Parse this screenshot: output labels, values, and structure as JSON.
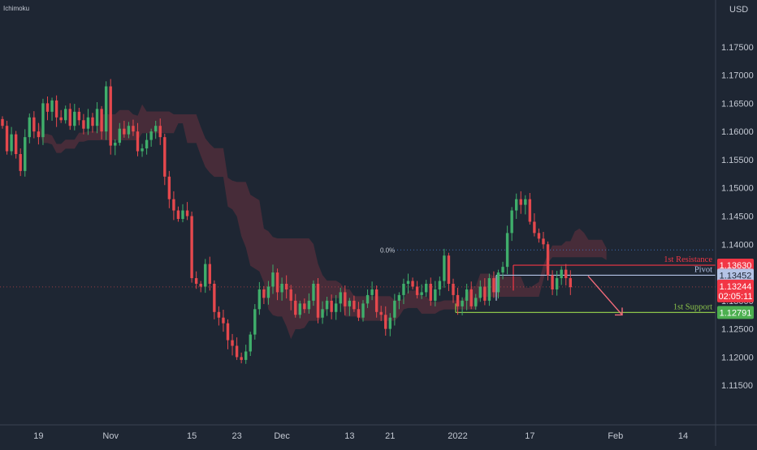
{
  "chart_data": {
    "type": "candlestick",
    "indicator_label": "Ichimoku",
    "currency": "USD",
    "ylim": [
      1.11,
      1.179
    ],
    "y_ticks": [
      "1.17500",
      "1.17000",
      "1.16500",
      "1.16000",
      "1.15500",
      "1.15000",
      "1.14500",
      "1.14000",
      "1.13500",
      "1.13000",
      "1.12500",
      "1.12000",
      "1.11500"
    ],
    "x_ticks": [
      {
        "label": "19",
        "bar": 8
      },
      {
        "label": "Nov",
        "bar": 24
      },
      {
        "label": "15",
        "bar": 42
      },
      {
        "label": "23",
        "bar": 52
      },
      {
        "label": "Dec",
        "bar": 62
      },
      {
        "label": "13",
        "bar": 77
      },
      {
        "label": "21",
        "bar": 86
      },
      {
        "label": "2022",
        "bar": 101
      },
      {
        "label": "17",
        "bar": 117
      },
      {
        "label": "Feb",
        "bar": 136
      },
      {
        "label": "14",
        "bar": 151
      }
    ],
    "series": [
      {
        "name": "Price",
        "values": [
          1.161,
          1.1565,
          1.1595,
          1.156,
          1.153,
          1.159,
          1.1625,
          1.16,
          1.159,
          1.165,
          1.1635,
          1.1655,
          1.1625,
          1.162,
          1.164,
          1.161,
          1.1635,
          1.162,
          1.1605,
          1.1625,
          1.161,
          1.164,
          1.16,
          1.168,
          1.1575,
          1.158,
          1.1605,
          1.1595,
          1.161,
          1.16,
          1.1565,
          1.157,
          1.1585,
          1.16,
          1.161,
          1.159,
          1.152,
          1.148,
          1.146,
          1.1445,
          1.146,
          1.145,
          1.134,
          1.133,
          1.1325,
          1.1365,
          1.133,
          1.128,
          1.127,
          1.126,
          1.123,
          1.122,
          1.12,
          1.1195,
          1.121,
          1.124,
          1.1285,
          1.132,
          1.1305,
          1.1325,
          1.135,
          1.1315,
          1.133,
          1.132,
          1.13,
          1.1275,
          1.1295,
          1.1285,
          1.13,
          1.133,
          1.127,
          1.1285,
          1.13,
          1.128,
          1.1295,
          1.1315,
          1.129,
          1.13,
          1.1285,
          1.127,
          1.1295,
          1.131,
          1.132,
          1.128,
          1.1275,
          1.125,
          1.127,
          1.13,
          1.131,
          1.133,
          1.1335,
          1.1325,
          1.131,
          1.1315,
          1.133,
          1.13,
          1.132,
          1.1335,
          1.138,
          1.133,
          1.131,
          1.129,
          1.13,
          1.132,
          1.129,
          1.1305,
          1.1325,
          1.13,
          1.134,
          1.1315,
          1.135,
          1.136,
          1.142,
          1.146,
          1.148,
          1.147,
          1.148,
          1.144,
          1.142,
          1.141,
          1.14,
          1.1345,
          1.132,
          1.134,
          1.1355,
          1.134,
          1.1324
        ]
      },
      {
        "name": "1st Resistance",
        "values": [
          1.1363
        ]
      },
      {
        "name": "Pivot",
        "values": [
          1.1345
        ]
      },
      {
        "name": "1st Support",
        "values": [
          1.1279
        ]
      }
    ],
    "levels": [
      {
        "label": "1st Resistance",
        "price_tag": "1.13630",
        "value": 1.1363,
        "color": "#f23645"
      },
      {
        "label": "Pivot",
        "price_tag": "1.13452",
        "value": 1.13452,
        "color": "#b5c4e6"
      },
      {
        "label": "1st Support",
        "price_tag": "1.12791",
        "value": 1.12791,
        "color": "#8bc34a"
      }
    ],
    "current_price": {
      "value": "1.13244",
      "countdown": "02:05:11",
      "numeric": 1.13244,
      "color": "#f23645"
    },
    "fib_label": "0.0%",
    "colors": {
      "background": "#1e2633",
      "up": "#3fae6b",
      "down": "#e5484d",
      "cloud_bear": "#7a3540",
      "cloud_bull": "#2f5a45",
      "grid": "#2a3342",
      "axis_text": "#c3c8d2"
    },
    "grid": false
  }
}
